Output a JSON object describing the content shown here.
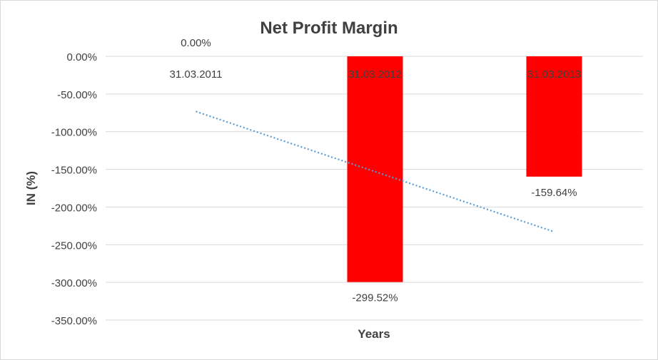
{
  "chart_data": {
    "type": "bar",
    "title": "Net Profit Margin",
    "xlabel": "Years",
    "ylabel": "IN (%)",
    "categories": [
      "31.03.2011",
      "31.03.2012",
      "31.03.2013"
    ],
    "values": [
      0.0,
      -299.52,
      -159.64
    ],
    "data_labels": [
      "0.00%",
      "-299.52%",
      "-159.64%"
    ],
    "ylim": [
      -350,
      0
    ],
    "yticks": [
      0,
      -50,
      -100,
      -150,
      -200,
      -250,
      -300,
      -350
    ],
    "ytick_labels": [
      "0.00%",
      "-50.00%",
      "-100.00%",
      "-150.00%",
      "-200.00%",
      "-250.00%",
      "-300.00%",
      "-350.00%"
    ],
    "grid": true,
    "legend": "none",
    "trendline": {
      "type": "linear",
      "style": "dotted",
      "color": "#5B9BD5"
    },
    "bar_color": "#FF0000"
  }
}
